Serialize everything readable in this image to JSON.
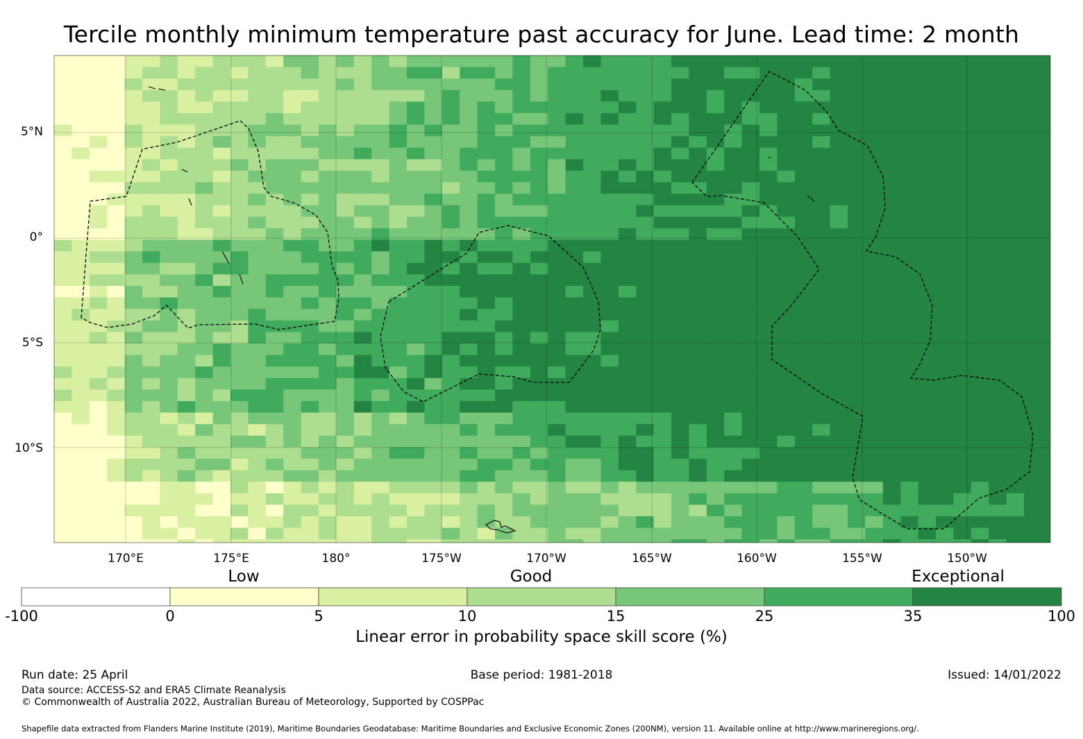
{
  "title": "Tercile monthly minimum temperature past accuracy for June. Lead time: 2 month",
  "latitude_labels": [
    "5°N",
    "0°",
    "5°S",
    "10°S"
  ],
  "longitude_labels": [
    "170°E",
    "175°E",
    "180°",
    "175°W",
    "170°W",
    "165°W",
    "160°W",
    "155°W",
    "150°W"
  ],
  "legend": {
    "categories": [
      "Low",
      "Good",
      "Exceptional"
    ],
    "ticks": [
      "-100",
      "0",
      "5",
      "10",
      "15",
      "25",
      "35",
      "100"
    ],
    "colors": [
      "#ffffff",
      "#ffffcc",
      "#d9f0a3",
      "#addd8e",
      "#78c679",
      "#41ab5d",
      "#238443"
    ],
    "title": "Linear error in probability space skill score (%)"
  },
  "footer": {
    "run_date": "Run date: 25 April",
    "base_period": "Base period: 1981-2018",
    "issued": "Issued: 14/01/2022",
    "data_source": "Data source: ACCESS-S2 and ERA5 Climate Reanalysis",
    "copyright": "© Commonwealth of Australia 2022, Australian Bureau of Meteorology, Supported by COSPPac",
    "shapefile": "Shapefile data extracted from Flanders Marine Institute (2019), Maritime Boundaries Geodatabase: Maritime Boundaries and Exclusive Economic Zones (200NM), version 11. Available online at http://www.marineregions.org/."
  }
}
